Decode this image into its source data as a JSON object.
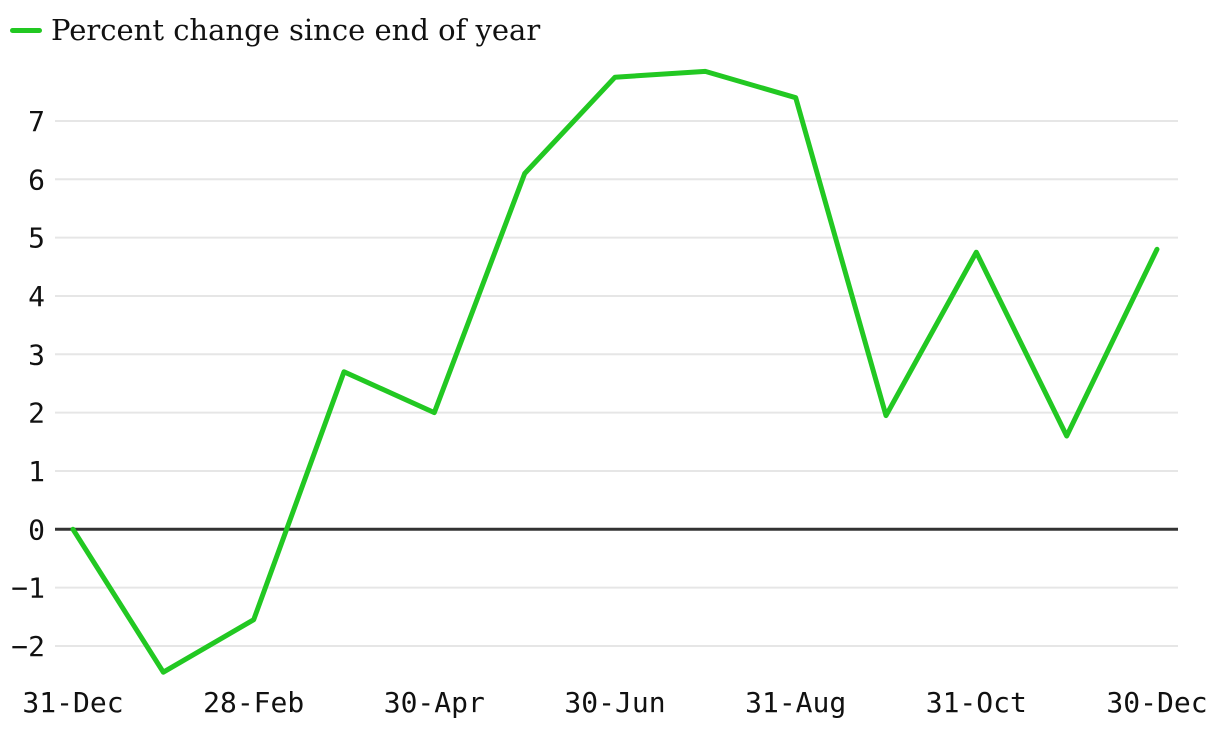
{
  "legend": {
    "label": "Percent change since end of year"
  },
  "chart_data": {
    "type": "line",
    "title": "",
    "legend_position": "top-left",
    "grid": "horizontal-only",
    "zero_line": true,
    "x": [
      0,
      1,
      2,
      3,
      4,
      5,
      6,
      7,
      8,
      9,
      10,
      11,
      12
    ],
    "x_ticks": [
      {
        "pos": 0,
        "label": "31-Dec"
      },
      {
        "pos": 2,
        "label": "28-Feb"
      },
      {
        "pos": 4,
        "label": "30-Apr"
      },
      {
        "pos": 6,
        "label": "30-Jun"
      },
      {
        "pos": 8,
        "label": "31-Aug"
      },
      {
        "pos": 10,
        "label": "31-Oct"
      },
      {
        "pos": 12,
        "label": "30-Dec"
      }
    ],
    "y_ticks": [
      7,
      6,
      5,
      4,
      3,
      2,
      1,
      0,
      -1,
      -2
    ],
    "ylim": [
      -2.7,
      8.1
    ],
    "xlabel": "",
    "ylabel": "",
    "series": [
      {
        "name": "Percent change since end of year",
        "color": "#22c822",
        "values": [
          0,
          -2.45,
          -1.55,
          2.7,
          2.0,
          6.1,
          7.75,
          7.85,
          7.4,
          1.95,
          4.75,
          1.6,
          4.8
        ]
      }
    ],
    "colors": {
      "line": "#22c822",
      "grid": "#e6e6e6",
      "zero_line": "#333333",
      "text": "#111111",
      "background": "#ffffff"
    }
  }
}
